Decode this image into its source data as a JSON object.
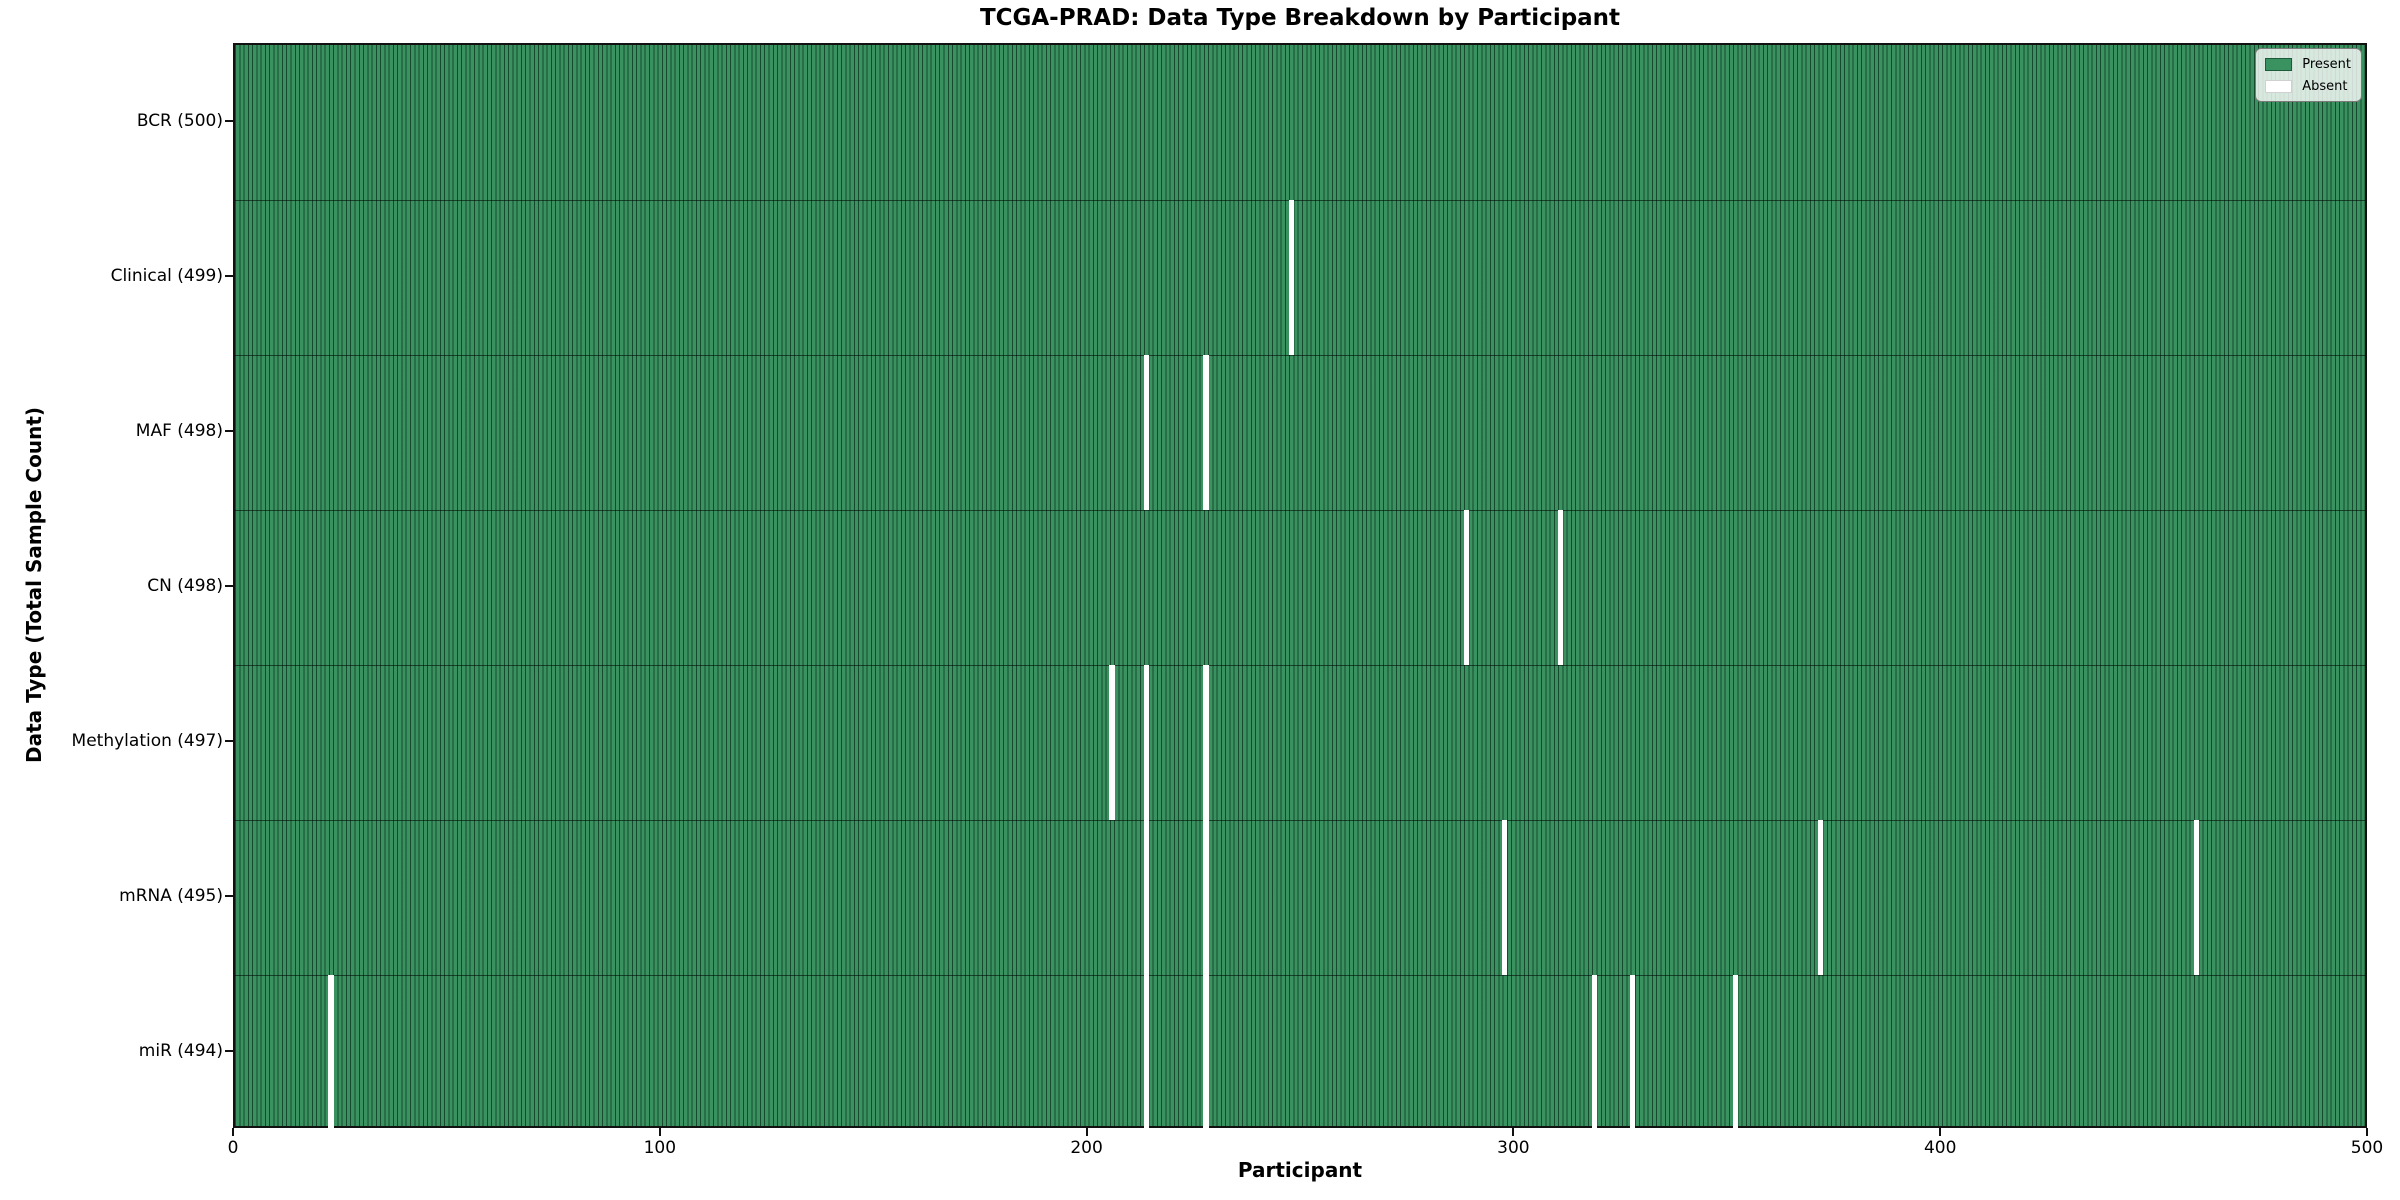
{
  "chart_data": {
    "type": "heatmap",
    "title": "TCGA-PRAD: Data Type Breakdown by Participant",
    "xlabel": "Participant",
    "ylabel": "Data Type (Total Sample Count)",
    "x_ticks": [
      "0",
      "100",
      "200",
      "300",
      "400",
      "500"
    ],
    "xlim": [
      0,
      500
    ],
    "n_participants": 500,
    "grid": false,
    "legend_position": "upper right",
    "legend": [
      {
        "label": "Present",
        "value": 1,
        "color": "#39925f"
      },
      {
        "label": "Absent",
        "value": 0,
        "color": "#ffffff"
      }
    ],
    "rows": [
      {
        "label": "BCR (500)",
        "data_type": "BCR",
        "total_samples": 500,
        "absent_participants": []
      },
      {
        "label": "Clinical (499)",
        "data_type": "Clinical",
        "total_samples": 499,
        "absent_participants": [
          247
        ]
      },
      {
        "label": "MAF (498)",
        "data_type": "MAF",
        "total_samples": 498,
        "absent_participants": [
          213,
          227
        ]
      },
      {
        "label": "CN (498)",
        "data_type": "CN",
        "total_samples": 498,
        "absent_participants": [
          288,
          310
        ]
      },
      {
        "label": "Methylation (497)",
        "data_type": "Methylation",
        "total_samples": 497,
        "absent_participants": [
          205,
          213,
          227
        ]
      },
      {
        "label": "mRNA (495)",
        "data_type": "mRNA",
        "total_samples": 495,
        "absent_participants": [
          213,
          227,
          297,
          371,
          459
        ]
      },
      {
        "label": "miR (494)",
        "data_type": "miR",
        "total_samples": 494,
        "absent_participants": [
          22,
          213,
          227,
          318,
          327,
          351
        ]
      }
    ],
    "colors": {
      "present_fill": "#39925f",
      "cell_edge": "#1d5b3a",
      "absent_fill": "#ffffff",
      "spine": "#111111",
      "background": "#ffffff"
    }
  }
}
